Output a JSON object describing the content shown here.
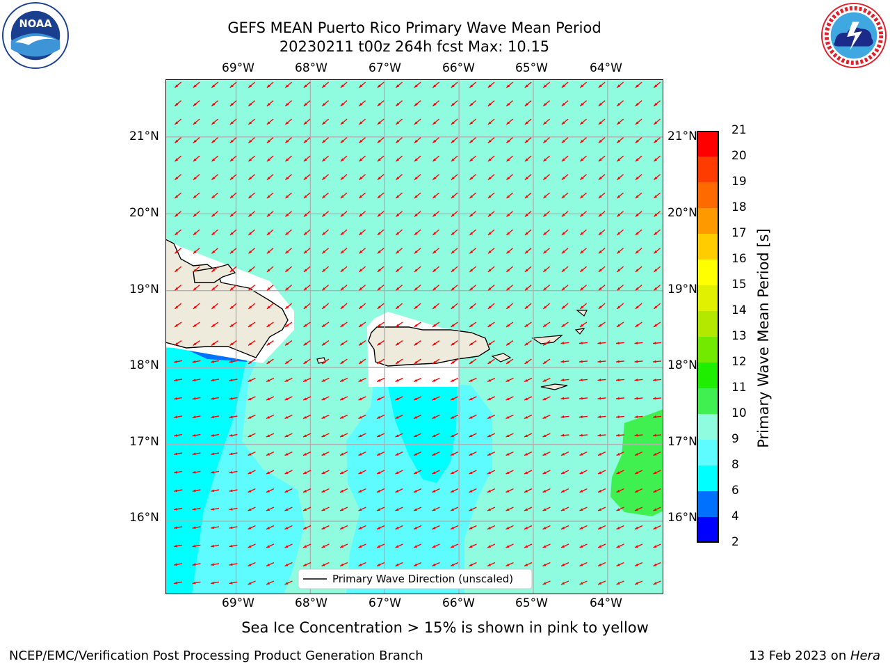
{
  "header": {
    "title_line1": "GEFS MEAN Puerto Rico Primary Wave Mean Period",
    "title_line2": "20230211 t00z 264h fcst   Max: 10.15"
  },
  "logos": {
    "left": {
      "icon": "noaa-logo",
      "text": "NOAA"
    },
    "right": {
      "icon": "national-weather-service-logo"
    }
  },
  "axes": {
    "lon_labels": [
      "69°W",
      "68°W",
      "67°W",
      "66°W",
      "65°W",
      "64°W"
    ],
    "lat_labels": [
      "21°N",
      "20°N",
      "19°N",
      "18°N",
      "17°N",
      "16°N"
    ],
    "lon_range": [
      -69.95,
      -63.25
    ],
    "lat_range": [
      15.05,
      21.75
    ]
  },
  "legend": {
    "label": "Primary Wave Direction (unscaled)"
  },
  "colorbar": {
    "label": "Primary Wave Mean Period [s]",
    "ticks": [
      "2",
      "4",
      "6",
      "8",
      "9",
      "10",
      "11",
      "12",
      "13",
      "14",
      "15",
      "16",
      "17",
      "18",
      "19",
      "20",
      "21"
    ],
    "colors": [
      "#0000ff",
      "#0070ff",
      "#00ffff",
      "#5ffcff",
      "#8ffce0",
      "#40f050",
      "#20ee00",
      "#72ea00",
      "#b4e800",
      "#e0f000",
      "#ffff00",
      "#ffcc00",
      "#ff9900",
      "#ff6a00",
      "#ff3c00",
      "#ff0000"
    ]
  },
  "colors": {
    "ocean_9_10": "#8ffce0",
    "ocean_8_9": "#5ffcff",
    "ocean_6_8": "#00ffff",
    "ocean_4_6": "#0070ff",
    "ocean_10_11": "#40f050",
    "land": "#efebdc",
    "arrows": "#ff0000"
  },
  "footer": {
    "ice_note": "Sea Ice Concentration > 15% is shown in pink to yellow",
    "left": "NCEP/EMC/Verification Post Processing Product Generation Branch",
    "right_date": "13 Feb 2023 on ",
    "right_host": "Hera"
  }
}
